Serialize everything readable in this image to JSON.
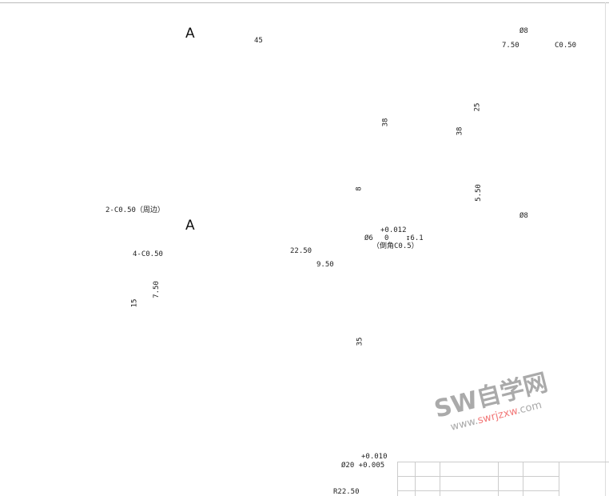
{
  "section_labels": [
    "A",
    "A"
  ],
  "dimensions": {
    "d45": "45",
    "phi8_top": "Ø8",
    "d7_50_top": "7.50",
    "c0_50": "C0.50",
    "d25": "25",
    "d38_a": "38",
    "d38_b": "38",
    "d8": "8",
    "d5_50": "5.50",
    "phi8_mid": "Ø8",
    "chamfer_edge": "2-C0.50（周边）",
    "chamfer4": "4-C0.50",
    "hole_tol_upper": "+0.012",
    "hole_phi": "Ø6",
    "hole_tol_lower": "0",
    "hole_depth": "↧6.1",
    "hole_chamfer": "（倒角C0.5）",
    "d22_50": "22.50",
    "d9_50": "9.50",
    "d7_50_left": "7.50",
    "d15": "15",
    "d35": "35",
    "bore_tol_upper": "+0.010",
    "bore_phi": "Ø20 +0.005",
    "radius": "R22.50"
  },
  "watermark": {
    "main": "SW自学网",
    "url_prefix": "www.",
    "url_highlight": "swrjzxw",
    "url_suffix": ".com"
  }
}
